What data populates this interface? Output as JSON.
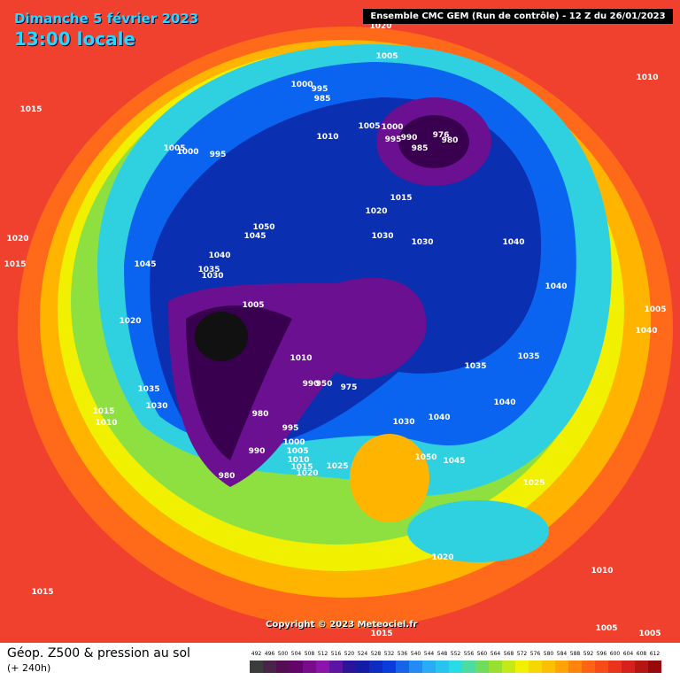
{
  "header": {
    "date": "Dimanche 5 février 2023",
    "time": "13:00 locale",
    "run": "Ensemble CMC GEM  (Run de contrôle)  -  12 Z du 26/01/2023"
  },
  "pressure_labels": [
    "1020",
    "1005",
    "1010",
    "1015",
    "1000",
    "995",
    "985",
    "1010",
    "1005",
    "1000",
    "995",
    "990",
    "976",
    "980",
    "985",
    "1005",
    "1000",
    "995",
    "1015",
    "1020",
    "1030",
    "1030",
    "1040",
    "1050",
    "1045",
    "1020",
    "1015",
    "1045",
    "1040",
    "1035",
    "1030",
    "1040",
    "1005",
    "1005",
    "1020",
    "1040",
    "1010",
    "1035",
    "1035",
    "990",
    "950",
    "975",
    "1035",
    "1030",
    "1040",
    "1040",
    "1030",
    "1015",
    "1010",
    "980",
    "995",
    "1000",
    "1005",
    "1010",
    "1015",
    "1020",
    "1025",
    "990",
    "980",
    "1050",
    "1045",
    "1025",
    "1020",
    "1010",
    "1015",
    "1005",
    "1005",
    "1015"
  ],
  "footer": {
    "field": "Géop. Z500 & pression au sol",
    "lead": "(+ 240h)",
    "copyright": "Copyright © 2023 Meteociel.fr"
  },
  "legend": {
    "values": [
      492,
      496,
      500,
      504,
      508,
      512,
      516,
      520,
      524,
      528,
      532,
      536,
      540,
      544,
      548,
      552,
      556,
      560,
      564,
      568,
      572,
      576,
      580,
      584,
      588,
      592,
      596,
      600,
      604,
      608,
      612
    ]
  }
}
